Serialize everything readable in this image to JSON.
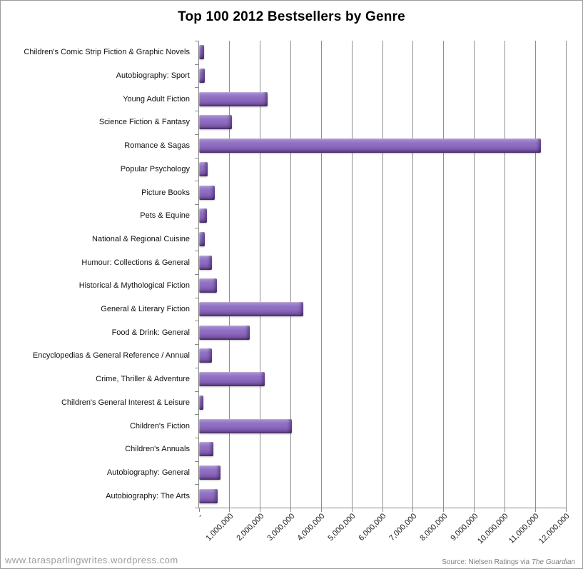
{
  "title": "Top 100 2012 Bestsellers by Genre",
  "footer": {
    "watermark": "www.tarasparlingwrites.wordpress.com",
    "source_prefix": "Source: Nielsen Ratings via ",
    "source_publication": "The Guardian"
  },
  "colors": {
    "bar_main": "#8b69bd",
    "bar_highlight": "#cab4e8",
    "bar_shadow": "#472d67",
    "gridline": "#8f8f8f",
    "axis": "#898989",
    "title_text": "#000000",
    "label_text": "#111111",
    "watermark_text": "#9d9d9d",
    "source_text": "#7f7f7f"
  },
  "chart_data": {
    "type": "bar",
    "orientation": "horizontal",
    "title": "Top 100 2012 Bestsellers by Genre",
    "categories": [
      "Children's Comic Strip Fiction & Graphic Novels",
      "Autobiography: Sport",
      "Young Adult Fiction",
      "Science Fiction & Fantasy",
      "Romance & Sagas",
      "Popular Psychology",
      "Picture Books",
      "Pets & Equine",
      "National & Regional Cuisine",
      "Humour: Collections & General",
      "Historical & Mythological Fiction",
      "General & Literary Fiction",
      "Food & Drink: General",
      "Encyclopedias & General Reference / Annual",
      "Crime, Thriller & Adventure",
      "Children's General Interest & Leisure",
      "Children's Fiction",
      "Children's Annuals",
      "Autobiography: General",
      "Autobiography:  The Arts"
    ],
    "values": [
      160000,
      180000,
      2240000,
      1080000,
      11180000,
      280000,
      510000,
      260000,
      190000,
      420000,
      580000,
      3420000,
      1660000,
      410000,
      2150000,
      140000,
      3030000,
      470000,
      710000,
      610000
    ],
    "xlabel": "",
    "ylabel": "",
    "xlim": [
      0,
      12000000
    ],
    "x_tick_step": 1000000,
    "x_tick_labels": [
      "-",
      "1,000,000",
      "2,000,000",
      "3,000,000",
      "4,000,000",
      "5,000,000",
      "6,000,000",
      "7,000,000",
      "8,000,000",
      "9,000,000",
      "10,000,000",
      "11,000,000",
      "12,000,000"
    ],
    "grid": "vertical",
    "legend": "none"
  }
}
